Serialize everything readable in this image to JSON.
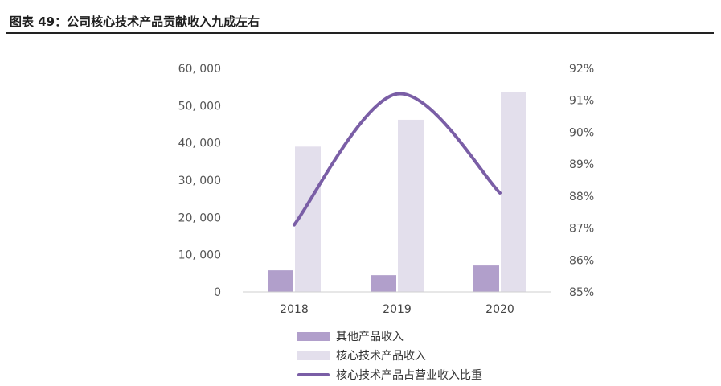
{
  "header": {
    "title": "图表 49：公司核心技术产品贡献收入九成左右"
  },
  "colors": {
    "other": "#b19fcb",
    "core": "#e3dfec",
    "ratio": "#7a5ea6"
  },
  "chart_data": {
    "type": "bar",
    "categories": [
      "2018",
      "2019",
      "2020"
    ],
    "series": [
      {
        "name": "其他产品收入",
        "values": [
          5800,
          4500,
          7100
        ]
      },
      {
        "name": "核心技术产品收入",
        "values": [
          39000,
          46200,
          53700
        ]
      }
    ],
    "line_series": {
      "name": "核心技术产品占营业收入比重",
      "values": [
        87.1,
        91.2,
        88.1
      ]
    },
    "ylim": [
      0,
      60000
    ],
    "yticks": [
      "0",
      "10, 000",
      "20, 000",
      "30, 000",
      "40, 000",
      "50, 000",
      "60, 000"
    ],
    "y2lim": [
      85,
      92
    ],
    "y2ticks": [
      "85%",
      "86%",
      "87%",
      "88%",
      "89%",
      "90%",
      "91%",
      "92%"
    ],
    "legend_position": "bottom"
  }
}
